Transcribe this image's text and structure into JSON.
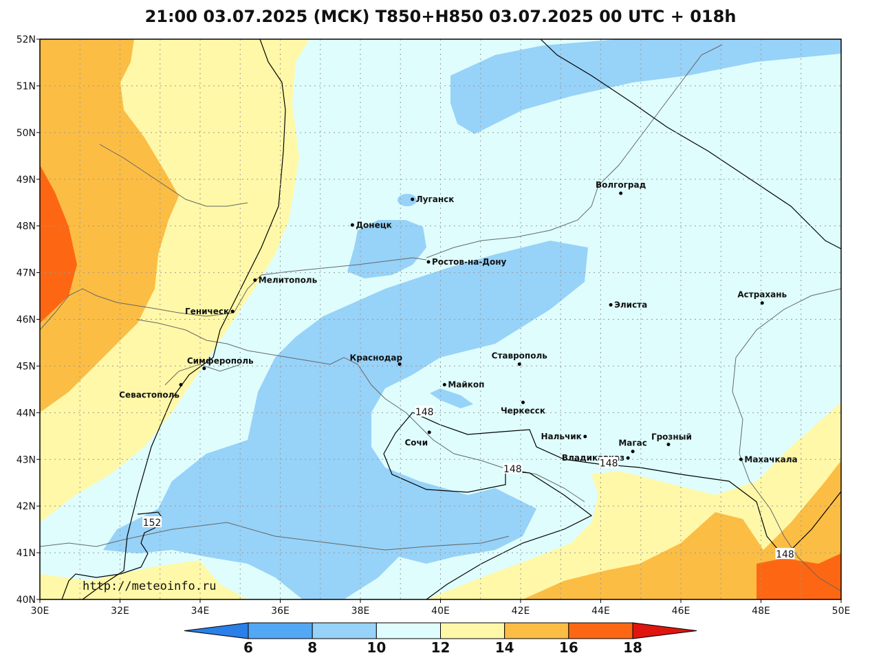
{
  "title": "21:00 03.07.2025 (MCK) T850+H850 03.07.2025 00 UTC + 018h",
  "watermark": "http://meteoinfo.ru",
  "axes": {
    "lat_labels": [
      "52N",
      "51N",
      "50N",
      "49N",
      "48N",
      "47N",
      "46N",
      "45N",
      "44N",
      "43N",
      "42N",
      "41N",
      "40N"
    ],
    "lon_labels": [
      "30E",
      "32E",
      "34E",
      "36E",
      "38E",
      "40E",
      "42E",
      "44E",
      "46E",
      "48E",
      "50E"
    ]
  },
  "cities": [
    {
      "name": "Луганск",
      "lon": 39.3,
      "lat": 48.57,
      "anchor": "right"
    },
    {
      "name": "Донецк",
      "lon": 37.8,
      "lat": 48.02,
      "anchor": "right"
    },
    {
      "name": "Ростов-на-Дону",
      "lon": 39.7,
      "lat": 47.23,
      "anchor": "right"
    },
    {
      "name": "Мелитополь",
      "lon": 35.37,
      "lat": 46.84,
      "anchor": "right"
    },
    {
      "name": "Геническ",
      "lon": 34.81,
      "lat": 46.17,
      "anchor": "left"
    },
    {
      "name": "Симферополь",
      "lon": 34.1,
      "lat": 44.95,
      "anchor": "right-up"
    },
    {
      "name": "Севастополь",
      "lon": 33.52,
      "lat": 44.6,
      "anchor": "left-down"
    },
    {
      "name": "Краснодар",
      "lon": 38.98,
      "lat": 45.04,
      "anchor": "left-up"
    },
    {
      "name": "Майкоп",
      "lon": 40.1,
      "lat": 44.6,
      "anchor": "right"
    },
    {
      "name": "Сочи",
      "lon": 39.72,
      "lat": 43.58,
      "anchor": "left-down"
    },
    {
      "name": "Ставрополь",
      "lon": 41.97,
      "lat": 45.04,
      "anchor": "center-up"
    },
    {
      "name": "Черкесск",
      "lon": 42.06,
      "lat": 44.22,
      "anchor": "center-down"
    },
    {
      "name": "Нальчик",
      "lon": 43.61,
      "lat": 43.49,
      "anchor": "left"
    },
    {
      "name": "Владикавказ",
      "lon": 44.68,
      "lat": 43.03,
      "anchor": "left"
    },
    {
      "name": "Магас",
      "lon": 44.8,
      "lat": 43.17,
      "anchor": "center-up"
    },
    {
      "name": "Грозный",
      "lon": 45.69,
      "lat": 43.32,
      "anchor": "right-up"
    },
    {
      "name": "Махачкала",
      "lon": 47.5,
      "lat": 43.0,
      "anchor": "right"
    },
    {
      "name": "Элиста",
      "lon": 44.25,
      "lat": 46.31,
      "anchor": "right"
    },
    {
      "name": "Волгоград",
      "lon": 44.5,
      "lat": 48.7,
      "anchor": "center-up"
    },
    {
      "name": "Астрахань",
      "lon": 48.03,
      "lat": 46.35,
      "anchor": "center-up"
    }
  ],
  "contour_labels": [
    {
      "text": "148",
      "lon": 39.6,
      "lat": 44.02
    },
    {
      "text": "148",
      "lon": 41.8,
      "lat": 42.8
    },
    {
      "text": "148",
      "lon": 44.2,
      "lat": 42.92
    },
    {
      "text": "148",
      "lon": 48.6,
      "lat": 40.97
    },
    {
      "text": "152",
      "lon": 32.8,
      "lat": 41.65
    }
  ],
  "colorbar": {
    "ticks": [
      "6",
      "8",
      "10",
      "12",
      "14",
      "16",
      "18"
    ],
    "colors": [
      "#2a7fe8",
      "#52a8f5",
      "#97d2f8",
      "#dffdfd",
      "#fff8a8",
      "#fbbd44",
      "#fd6713",
      "#e0150f"
    ]
  },
  "colors": {
    "c8_10": "#97d2f8",
    "c10_12": "#dffdfd",
    "c12_14": "#fff8a8",
    "c14_16": "#fbbd44",
    "c16_18": "#fd6713"
  }
}
